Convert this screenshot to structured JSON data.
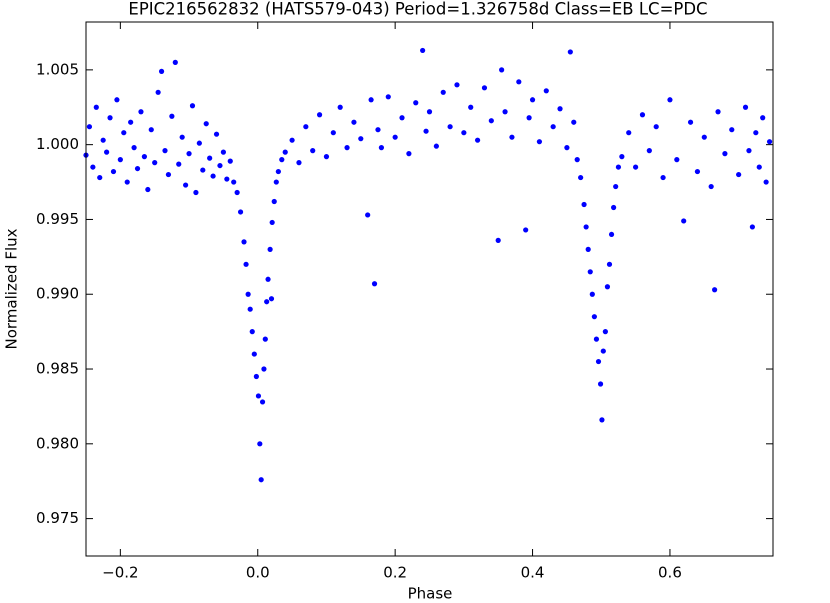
{
  "chart_data": {
    "type": "scatter",
    "title": "EPIC216562832 (HATS579-043)   Period=1.326758d   Class=EB   LC=PDC",
    "x_label": "Phase",
    "y_label": "Normalized Flux",
    "xlim": [
      -0.25,
      0.75
    ],
    "ylim": [
      0.9725,
      1.0082
    ],
    "xticks": [
      {
        "value": -0.2,
        "label": "−0.2"
      },
      {
        "value": 0,
        "label": "0.0"
      },
      0.2,
      0.4,
      0.6
    ],
    "yticks": [
      0.975,
      {
        "value": 0.98,
        "label": "0.980"
      },
      0.985,
      {
        "value": 0.99,
        "label": "0.990"
      },
      0.995,
      {
        "value": 1,
        "label": "1.000"
      },
      1.005
    ],
    "series": [
      {
        "color": "#0000ff",
        "x": [
          -0.25,
          -0.245,
          -0.24,
          -0.235,
          -0.23,
          -0.225,
          -0.22,
          -0.215,
          -0.21,
          -0.205,
          -0.2,
          -0.195,
          -0.19,
          -0.185,
          -0.18,
          -0.175,
          -0.17,
          -0.165,
          -0.16,
          -0.155,
          -0.15,
          -0.145,
          -0.14,
          -0.135,
          -0.13,
          -0.125,
          -0.12,
          -0.115,
          -0.11,
          -0.105,
          -0.1,
          -0.095,
          -0.09,
          -0.085,
          -0.08,
          -0.075,
          -0.07,
          -0.065,
          -0.06,
          -0.055,
          -0.05,
          -0.045,
          -0.04,
          -0.035,
          -0.03,
          -0.025,
          -0.02,
          -0.017,
          -0.014,
          -0.011,
          -0.008,
          -0.005,
          -0.002,
          0.001,
          0.003,
          0.005,
          0.007,
          0.009,
          0.011,
          0.013,
          0.015,
          0.018,
          0.02,
          0.021,
          0.024,
          0.027,
          0.03,
          0.035,
          0.04,
          0.05,
          0.06,
          0.07,
          0.08,
          0.09,
          0.1,
          0.11,
          0.12,
          0.13,
          0.14,
          0.15,
          0.16,
          0.165,
          0.17,
          0.175,
          0.18,
          0.19,
          0.2,
          0.21,
          0.22,
          0.23,
          0.24,
          0.245,
          0.25,
          0.26,
          0.27,
          0.28,
          0.29,
          0.3,
          0.31,
          0.32,
          0.33,
          0.34,
          0.35,
          0.355,
          0.36,
          0.37,
          0.38,
          0.39,
          0.395,
          0.4,
          0.41,
          0.42,
          0.43,
          0.44,
          0.45,
          0.455,
          0.46,
          0.465,
          0.47,
          0.475,
          0.478,
          0.481,
          0.484,
          0.487,
          0.49,
          0.493,
          0.496,
          0.499,
          0.501,
          0.503,
          0.506,
          0.509,
          0.512,
          0.515,
          0.518,
          0.521,
          0.525,
          0.53,
          0.54,
          0.55,
          0.56,
          0.57,
          0.58,
          0.59,
          0.6,
          0.61,
          0.62,
          0.63,
          0.64,
          0.65,
          0.66,
          0.665,
          0.67,
          0.68,
          0.69,
          0.7,
          0.71,
          0.715,
          0.72,
          0.725,
          0.73,
          0.735,
          0.74,
          0.745
        ],
        "values": [
          0.9993,
          1.0012,
          0.9985,
          1.0025,
          0.9978,
          1.0003,
          0.9995,
          1.0018,
          0.9982,
          1.003,
          0.999,
          1.0008,
          0.9975,
          1.0015,
          0.9998,
          0.9984,
          1.0022,
          0.9992,
          0.997,
          1.001,
          0.9988,
          1.0035,
          1.0049,
          0.9996,
          0.998,
          1.0019,
          1.0055,
          0.9987,
          1.0005,
          0.9973,
          0.9994,
          1.0026,
          0.9968,
          1.0001,
          0.9983,
          1.0014,
          0.9991,
          0.9979,
          1.0007,
          0.9986,
          0.9995,
          0.9977,
          0.9989,
          0.9975,
          0.9968,
          0.9955,
          0.9935,
          0.992,
          0.99,
          0.989,
          0.9875,
          0.986,
          0.9845,
          0.9832,
          0.98,
          0.9776,
          0.9828,
          0.985,
          0.987,
          0.9895,
          0.991,
          0.993,
          0.9897,
          0.9948,
          0.9962,
          0.9975,
          0.9982,
          0.999,
          0.9995,
          1.0003,
          0.9988,
          1.0012,
          0.9996,
          1.002,
          0.9992,
          1.0008,
          1.0025,
          0.9998,
          1.0015,
          1.0004,
          0.9953,
          1.003,
          0.9907,
          1.001,
          0.9998,
          1.0032,
          1.0005,
          1.0018,
          0.9994,
          1.0028,
          1.0063,
          1.0009,
          1.0022,
          0.9999,
          1.0035,
          1.0012,
          1.004,
          1.0008,
          1.0025,
          1.0003,
          1.0038,
          1.0016,
          0.9936,
          1.005,
          1.0022,
          1.0005,
          1.0042,
          0.9943,
          1.0018,
          1.003,
          1.0002,
          1.0036,
          1.0012,
          1.0024,
          0.9998,
          1.0062,
          1.0015,
          0.999,
          0.9978,
          0.996,
          0.9945,
          0.993,
          0.9915,
          0.99,
          0.9885,
          0.987,
          0.9855,
          0.984,
          0.9816,
          0.9862,
          0.9875,
          0.9905,
          0.992,
          0.994,
          0.9958,
          0.9972,
          0.9985,
          0.9992,
          1.0008,
          0.9985,
          1.002,
          0.9996,
          1.0012,
          0.9978,
          1.003,
          0.999,
          0.9949,
          1.0015,
          0.9982,
          1.0005,
          0.9972,
          0.9903,
          1.0022,
          0.9994,
          1.001,
          0.998,
          1.0025,
          0.9996,
          0.9945,
          1.0008,
          0.9985,
          1.0018,
          0.9975,
          1.0002
        ]
      }
    ]
  }
}
